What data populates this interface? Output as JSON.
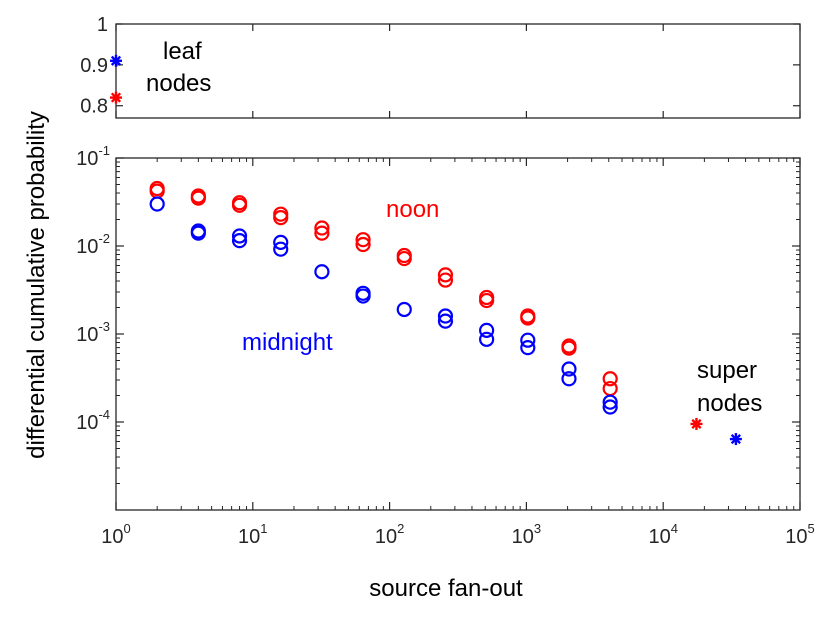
{
  "chart_data": [
    {
      "type": "scatter",
      "panel": "top",
      "xscale": "log",
      "xlim": [
        1,
        100000
      ],
      "ylim": [
        0.77,
        1.0
      ],
      "yticks": [
        0.8,
        0.9,
        1
      ],
      "ytick_labels": [
        "0.8",
        "0.9",
        "1"
      ],
      "series": [
        {
          "color": "#0000ff",
          "marker": "asterisk",
          "points": [
            [
              1,
              0.91
            ]
          ]
        },
        {
          "color": "#ff0000",
          "marker": "asterisk",
          "points": [
            [
              1,
              0.82
            ]
          ]
        }
      ],
      "annotations": [
        {
          "text": "leaf",
          "color": "#000000"
        },
        {
          "text": "nodes",
          "color": "#000000"
        }
      ]
    },
    {
      "type": "scatter",
      "panel": "bottom",
      "xscale": "log",
      "yscale": "log",
      "xlim": [
        1,
        100000
      ],
      "ylim": [
        1e-05,
        0.1
      ],
      "xlabel": "source fan-out",
      "ylabel": "differential cumulative probability",
      "xticks": [
        {
          "base": "10",
          "exp": "0"
        },
        {
          "base": "10",
          "exp": "1"
        },
        {
          "base": "10",
          "exp": "2"
        },
        {
          "base": "10",
          "exp": "3"
        },
        {
          "base": "10",
          "exp": "4"
        },
        {
          "base": "10",
          "exp": "5"
        }
      ],
      "yticks": [
        {
          "base": "10",
          "exp": "-4"
        },
        {
          "base": "10",
          "exp": "-3"
        },
        {
          "base": "10",
          "exp": "-2"
        },
        {
          "base": "10",
          "exp": "-1"
        }
      ],
      "series": [
        {
          "name": "noon",
          "color": "#ff0000",
          "marker": "circle",
          "points": [
            [
              2,
              0.045
            ],
            [
              2,
              0.042
            ],
            [
              4,
              0.037
            ],
            [
              4,
              0.035
            ],
            [
              8,
              0.031
            ],
            [
              8,
              0.029
            ],
            [
              16,
              0.023
            ],
            [
              16,
              0.021
            ],
            [
              32,
              0.016
            ],
            [
              32,
              0.014
            ],
            [
              64,
              0.0118
            ],
            [
              64,
              0.0104
            ],
            [
              128,
              0.0078
            ],
            [
              128,
              0.0072
            ],
            [
              256,
              0.0047
            ],
            [
              256,
              0.0041
            ],
            [
              512,
              0.0026
            ],
            [
              512,
              0.0024
            ],
            [
              1024,
              0.0016
            ],
            [
              1024,
              0.00152
            ],
            [
              2048,
              0.00073
            ],
            [
              2048,
              0.00069
            ],
            [
              4096,
              0.00031
            ],
            [
              4096,
              0.00024
            ]
          ]
        },
        {
          "name": "midnight",
          "color": "#0000ff",
          "marker": "circle",
          "points": [
            [
              2,
              0.03
            ],
            [
              4,
              0.0148
            ],
            [
              4,
              0.014
            ],
            [
              8,
              0.013
            ],
            [
              8,
              0.0115
            ],
            [
              16,
              0.011
            ],
            [
              16,
              0.0092
            ],
            [
              32,
              0.0051
            ],
            [
              64,
              0.0029
            ],
            [
              64,
              0.0027
            ],
            [
              128,
              0.0019
            ],
            [
              256,
              0.0016
            ],
            [
              256,
              0.0014
            ],
            [
              512,
              0.0011
            ],
            [
              512,
              0.00087
            ],
            [
              1024,
              0.00085
            ],
            [
              1024,
              0.0007
            ],
            [
              2048,
              0.0004
            ],
            [
              2048,
              0.00031
            ],
            [
              4096,
              0.000168
            ],
            [
              4096,
              0.000148
            ]
          ]
        },
        {
          "color": "#ff0000",
          "marker": "asterisk",
          "points": [
            [
              17500,
              9.5e-05
            ]
          ]
        },
        {
          "color": "#0000ff",
          "marker": "asterisk",
          "points": [
            [
              34000,
              6.4e-05
            ]
          ]
        }
      ],
      "annotations": [
        {
          "text": "noon",
          "color": "#ff0000"
        },
        {
          "text": "midnight",
          "color": "#0000ff"
        },
        {
          "text": "super",
          "color": "#000000"
        },
        {
          "text": "nodes",
          "color": "#000000"
        }
      ]
    }
  ]
}
